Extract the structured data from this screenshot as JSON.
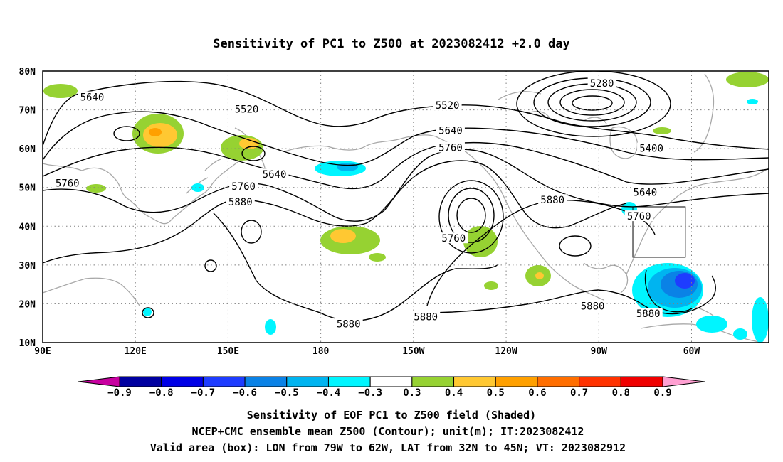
{
  "title": "Sensitivity of PC1 to Z500 at 2023082412 +2.0 day",
  "lat_labels": [
    "80N",
    "70N",
    "60N",
    "50N",
    "40N",
    "30N",
    "20N",
    "10N"
  ],
  "lon_labels": [
    "90E",
    "120E",
    "150E",
    "180",
    "150W",
    "120W",
    "90W",
    "60W"
  ],
  "contour_labels": [
    {
      "text": "5640",
      "lon": 106,
      "lat": 73.3
    },
    {
      "text": "5520",
      "lon": 156,
      "lat": 70.2
    },
    {
      "text": "5520",
      "lon": 221,
      "lat": 71.2
    },
    {
      "text": "5280",
      "lon": 271,
      "lat": 76.9
    },
    {
      "text": "5640",
      "lon": 222,
      "lat": 64.7
    },
    {
      "text": "5760",
      "lon": 222,
      "lat": 60.3
    },
    {
      "text": "5400",
      "lon": 287,
      "lat": 60.1
    },
    {
      "text": "5640",
      "lon": 165,
      "lat": 53.4
    },
    {
      "text": "5760",
      "lon": 155,
      "lat": 50.3
    },
    {
      "text": "5880",
      "lon": 154,
      "lat": 46.3
    },
    {
      "text": "5760",
      "lon": 98,
      "lat": 51.1
    },
    {
      "text": "5880",
      "lon": 255,
      "lat": 46.8
    },
    {
      "text": "5640",
      "lon": 285,
      "lat": 48.8
    },
    {
      "text": "5760",
      "lon": 283,
      "lat": 42.6
    },
    {
      "text": "5760",
      "lon": 223,
      "lat": 36.9
    },
    {
      "text": "5880",
      "lon": 268,
      "lat": 19.4
    },
    {
      "text": "5880",
      "lon": 286,
      "lat": 17.5
    },
    {
      "text": "5880",
      "lon": 189,
      "lat": 14.9
    },
    {
      "text": "5880",
      "lon": 214,
      "lat": 16.7
    }
  ],
  "valid_box": {
    "lon_min": 281,
    "lon_max": 298,
    "lat_min": 32,
    "lat_max": 45
  },
  "colorbar": {
    "colors": [
      "#0000a0",
      "#0000e6",
      "#1e3cff",
      "#0a82e6",
      "#00b4f0",
      "#00f5ff",
      "#ffffff",
      "#96d232",
      "#ffc832",
      "#ffa000",
      "#ff6e00",
      "#ff3200",
      "#f00000"
    ],
    "left_tri_color": "#c800a0",
    "right_tri_color": "#ffa0d2",
    "labels": [
      "−0.9",
      "−0.8",
      "−0.7",
      "−0.6",
      "−0.5",
      "−0.4",
      "−0.3",
      "0.3",
      "0.4",
      "0.5",
      "0.6",
      "0.7",
      "0.8",
      "0.9"
    ]
  },
  "caption": {
    "line1": "Sensitivity of EOF PC1 to Z500 field (Shaded)",
    "line2": "NCEP+CMC ensemble mean Z500 (Contour); unit(m); IT:2023082412",
    "line3": "Valid area (box): LON from 79W to 62W, LAT from 32N to 45N; VT: 2023082912"
  }
}
